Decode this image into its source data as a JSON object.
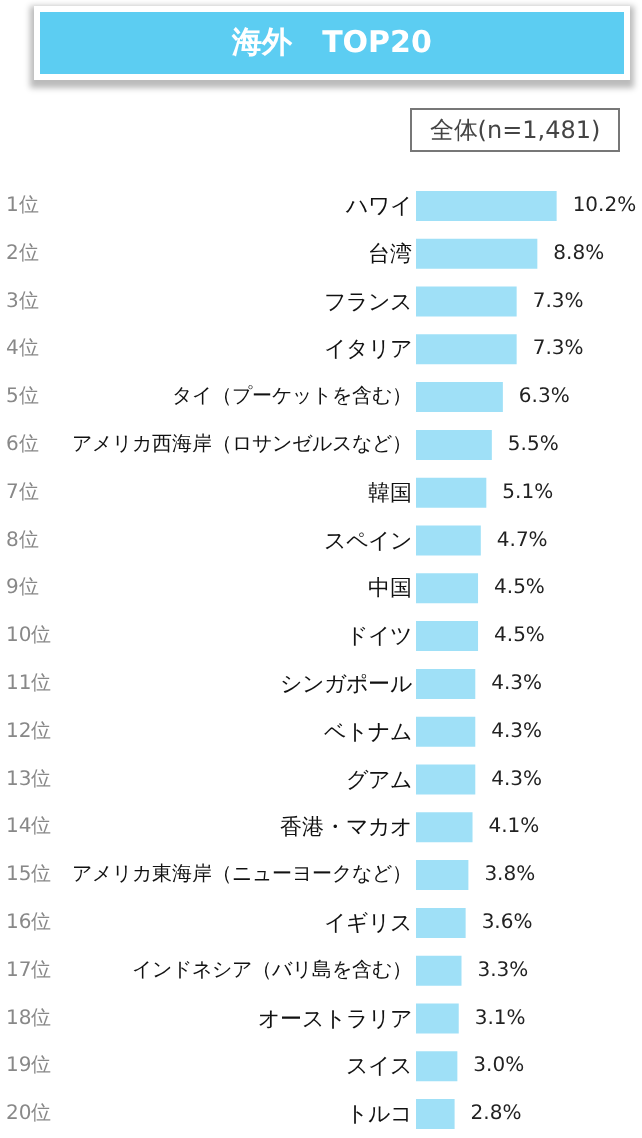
{
  "chart_data": {
    "type": "bar",
    "orientation": "horizontal",
    "title": "海外　TOP20",
    "subtitle": "全体(n=1,481)",
    "categories": [
      "ハワイ",
      "台湾",
      "フランス",
      "イタリア",
      "タイ（プーケットを含む）",
      "アメリカ西海岸（ロサンゼルスなど）",
      "韓国",
      "スペイン",
      "中国",
      "ドイツ",
      "シンガポール",
      "ベトナム",
      "グアム",
      "香港・マカオ",
      "アメリカ東海岸（ニューヨークなど）",
      "イギリス",
      "インドネシア（バリ島を含む）",
      "オーストラリア",
      "スイス",
      "トルコ"
    ],
    "values": [
      10.2,
      8.8,
      7.3,
      7.3,
      6.3,
      5.5,
      5.1,
      4.7,
      4.5,
      4.5,
      4.3,
      4.3,
      4.3,
      4.1,
      3.8,
      3.6,
      3.3,
      3.1,
      3.0,
      2.8
    ],
    "value_labels": [
      "10.2%",
      "8.8%",
      "7.3%",
      "7.3%",
      "6.3%",
      "5.5%",
      "5.1%",
      "4.7%",
      "4.5%",
      "4.5%",
      "4.3%",
      "4.3%",
      "4.3%",
      "4.1%",
      "3.8%",
      "3.6%",
      "3.3%",
      "3.1%",
      "3.0%",
      "2.8%"
    ],
    "color": "#9fe0f7",
    "annotations": [
      "1位",
      "2位",
      "3位",
      "4位",
      "5位",
      "6位",
      "7位",
      "8位",
      "9位",
      "10位",
      "11位",
      "12位",
      "13位",
      "14位",
      "15位",
      "16位",
      "17位",
      "18位",
      "19位",
      "20位"
    ],
    "grid": false
  }
}
